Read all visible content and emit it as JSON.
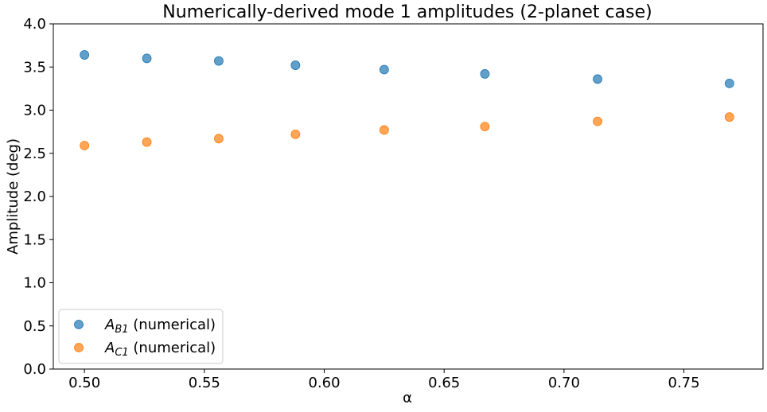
{
  "chart_data": {
    "type": "scatter",
    "title": "Numerically-derived mode 1 amplitudes (2-planet case)",
    "xlabel": "α",
    "ylabel": "Amplitude (deg)",
    "xlim": [
      0.487,
      0.783
    ],
    "ylim": [
      0.0,
      4.0
    ],
    "xticks": [
      "0.50",
      "0.55",
      "0.60",
      "0.65",
      "0.70",
      "0.75"
    ],
    "yticks": [
      "0.0",
      "0.5",
      "1.0",
      "1.5",
      "2.0",
      "2.5",
      "3.0",
      "3.5",
      "4.0"
    ],
    "grid": false,
    "legend_position": "lower-left",
    "series": [
      {
        "name": "A_B1 (numerical)",
        "legend_main": "A",
        "legend_sub": "B1",
        "legend_rest": " (numerical)",
        "color": "#1f77b4",
        "x": [
          0.5,
          0.526,
          0.556,
          0.588,
          0.625,
          0.667,
          0.714,
          0.769
        ],
        "y": [
          3.64,
          3.6,
          3.57,
          3.52,
          3.47,
          3.42,
          3.36,
          3.31
        ]
      },
      {
        "name": "A_C1 (numerical)",
        "legend_main": "A",
        "legend_sub": "C1",
        "legend_rest": " (numerical)",
        "color": "#ff7f0e",
        "x": [
          0.5,
          0.526,
          0.556,
          0.588,
          0.625,
          0.667,
          0.714,
          0.769
        ],
        "y": [
          2.59,
          2.63,
          2.67,
          2.72,
          2.77,
          2.81,
          2.87,
          2.92
        ]
      }
    ]
  }
}
